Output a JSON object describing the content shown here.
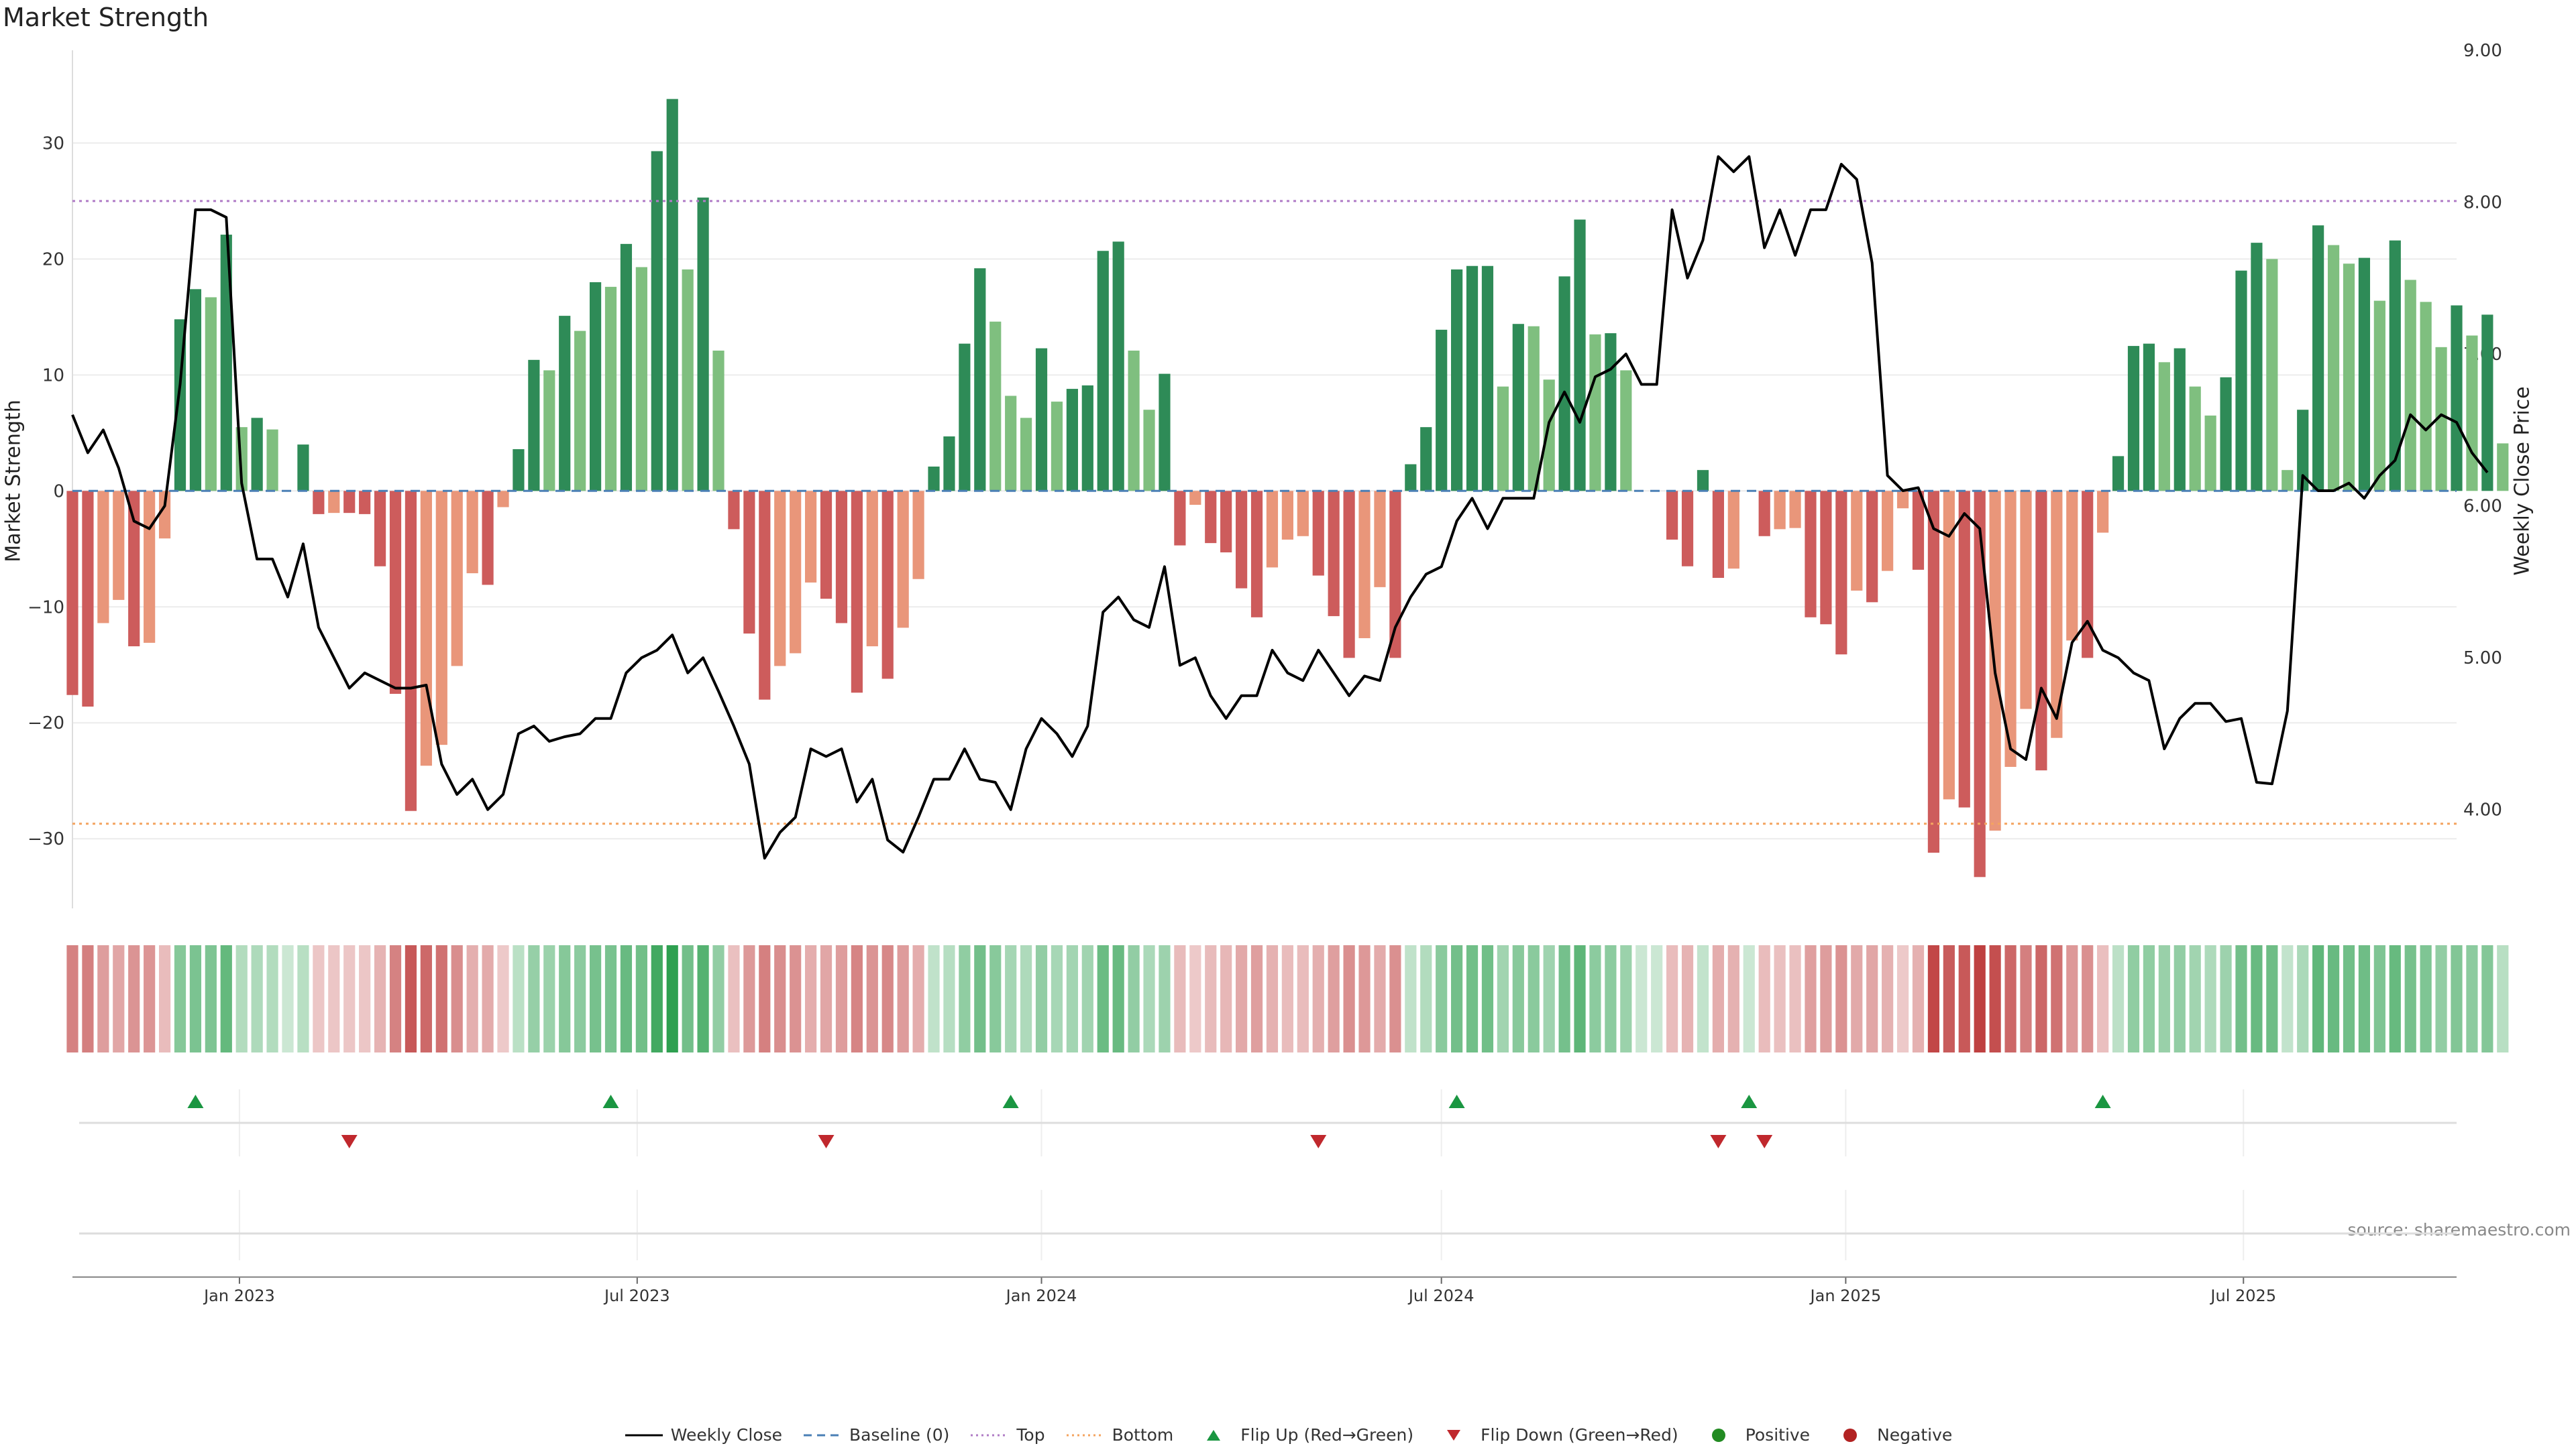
{
  "title": "Market Strength",
  "source_text": "source: sharemaestro.com",
  "colors": {
    "positive_strong": "#2e8b57",
    "positive_light": "#7fbf7f",
    "negative_strong": "#cd5c5c",
    "negative_light": "#e9967a",
    "top_line": "#b07cc6",
    "bottom_line": "#f4a460",
    "baseline": "#4a7fb5",
    "price_line": "#000000",
    "flip_up": "#1a9641",
    "flip_down": "#c0282d"
  },
  "legend": [
    {
      "label": "Weekly Close",
      "kind": "line",
      "color": "#000000"
    },
    {
      "label": "Baseline (0)",
      "kind": "dash",
      "color": "#4a7fb5"
    },
    {
      "label": "Top",
      "kind": "dot",
      "color": "#b07cc6"
    },
    {
      "label": "Bottom",
      "kind": "dot",
      "color": "#f4a460"
    },
    {
      "label": "Flip Up (Red→Green)",
      "kind": "tri-up",
      "color": "#1a9641"
    },
    {
      "label": "Flip Down (Green→Red)",
      "kind": "tri-down",
      "color": "#c0282d"
    },
    {
      "label": "Positive",
      "kind": "circle",
      "color": "#228b22"
    },
    {
      "label": "Negative",
      "kind": "circle",
      "color": "#b22222"
    }
  ],
  "chart_data": {
    "type": "bar",
    "title": "Market Strength",
    "ylabel": "Market Strength",
    "y2label": "Weekly Close Price",
    "ylim": [
      -36,
      38
    ],
    "y2lim": [
      3.35,
      9.0
    ],
    "yticks": [
      -30,
      -20,
      -10,
      0,
      10,
      20,
      30
    ],
    "y2ticks": [
      "4.00",
      "5.00",
      "6.00",
      "7.00",
      "8.00",
      "9.00"
    ],
    "xticks": [
      "Jan 2023",
      "Jul 2023",
      "Jan 2024",
      "Jul 2024",
      "Jan 2025",
      "Jul 2025"
    ],
    "x_range": [
      "2022-10-17",
      "2025-10-06"
    ],
    "top_level": 25,
    "bottom_level": -28.7,
    "grid": true,
    "legend_position": "bottom",
    "series": [
      {
        "name": "Market Strength",
        "x_start": "2022-10-17",
        "step_days": 7,
        "values": [
          -17.6,
          -18.6,
          -11.4,
          -9.4,
          -13.4,
          -13.1,
          -4.1,
          14.8,
          17.4,
          16.7,
          22.1,
          5.5,
          6.3,
          5.3,
          0,
          4,
          -2,
          -1.9,
          -1.9,
          -2,
          -6.5,
          -17.5,
          -27.6,
          -23.7,
          -21.9,
          -15.1,
          -7.1,
          -8.1,
          -1.4,
          3.6,
          11.3,
          10.4,
          15.1,
          13.8,
          18,
          17.6,
          21.3,
          19.3,
          29.3,
          33.8,
          19.1,
          25.3,
          12.1,
          -3.3,
          -12.3,
          -18,
          -15.1,
          -14,
          -7.9,
          -9.3,
          -11.4,
          -17.4,
          -13.4,
          -16.2,
          -11.8,
          -7.6,
          2.1,
          4.7,
          12.7,
          19.2,
          14.6,
          8.2,
          6.3,
          12.3,
          7.7,
          8.8,
          9.1,
          20.7,
          21.5,
          12.1,
          7,
          10.1,
          -4.7,
          -1.2,
          -4.5,
          -5.3,
          -8.4,
          -10.9,
          -6.6,
          -4.2,
          -3.9,
          -7.3,
          -10.8,
          -14.4,
          -12.7,
          -8.3,
          -14.4,
          2.3,
          5.5,
          13.9,
          19.1,
          19.4,
          19.4,
          9,
          14.4,
          14.2,
          9.6,
          18.5,
          23.4,
          13.5,
          13.6,
          10.4,
          0,
          0,
          -4.2,
          -6.5,
          1.8,
          -7.5,
          -6.7,
          0,
          -3.9,
          -3.3,
          -3.2,
          -10.9,
          -11.5,
          -14.1,
          -8.6,
          -9.6,
          -6.9,
          -1.5,
          -6.8,
          -31.2,
          -26.6,
          -27.3,
          -33.3,
          -29.3,
          -23.8,
          -18.8,
          -24.1,
          -21.3,
          -12.9,
          -14.4,
          -3.6,
          3,
          12.5,
          12.7,
          11.1,
          12.3,
          9,
          6.5,
          9.8,
          19,
          21.4,
          20,
          1.8,
          7,
          22.9,
          21.2,
          19.6,
          20.1,
          16.4,
          21.6,
          18.2,
          16.3,
          12.4,
          16,
          13.4,
          15.2,
          4.1
        ],
        "color_encoding": "green/red by sign, darker shade when magnitude rises"
      },
      {
        "name": "Weekly Close",
        "x_start": "2022-10-17",
        "step_days": 7,
        "values": [
          6.6,
          6.35,
          6.5,
          6.25,
          5.9,
          5.85,
          6.0,
          6.8,
          7.95,
          7.95,
          7.9,
          6.15,
          5.65,
          5.65,
          5.4,
          5.75,
          5.2,
          5.0,
          4.8,
          4.9,
          4.85,
          4.8,
          4.8,
          4.82,
          4.3,
          4.1,
          4.2,
          4.0,
          4.1,
          4.5,
          4.55,
          4.45,
          4.48,
          4.5,
          4.6,
          4.6,
          4.9,
          5.0,
          5.05,
          5.15,
          4.9,
          5.0,
          4.78,
          4.55,
          4.3,
          3.68,
          3.85,
          3.95,
          4.4,
          4.35,
          4.4,
          4.05,
          4.2,
          3.8,
          3.72,
          3.95,
          4.2,
          4.2,
          4.4,
          4.2,
          4.18,
          4.0,
          4.4,
          4.6,
          4.5,
          4.35,
          4.55,
          5.3,
          5.4,
          5.25,
          5.2,
          5.6,
          4.95,
          5.0,
          4.75,
          4.6,
          4.75,
          4.75,
          5.05,
          4.9,
          4.85,
          5.05,
          4.9,
          4.75,
          4.88,
          4.85,
          5.2,
          5.4,
          5.55,
          5.6,
          5.9,
          6.05,
          5.85,
          6.05,
          6.05,
          6.05,
          6.55,
          6.75,
          6.55,
          6.85,
          6.9,
          7.0,
          6.8,
          6.8,
          7.95,
          7.5,
          7.75,
          8.3,
          8.2,
          8.3,
          7.7,
          7.95,
          7.65,
          7.95,
          7.95,
          8.25,
          8.15,
          7.6,
          6.2,
          6.1,
          6.12,
          5.85,
          5.8,
          5.95,
          5.85,
          4.9,
          4.4,
          4.33,
          4.8,
          4.6,
          5.1,
          5.24,
          5.05,
          5.0,
          4.9,
          4.85,
          4.4,
          4.6,
          4.7,
          4.7,
          4.58,
          4.6,
          4.18,
          4.17,
          4.65,
          6.2,
          6.1,
          6.1,
          6.15,
          6.05,
          6.2,
          6.3,
          6.6,
          6.5,
          6.6,
          6.55,
          6.35,
          6.22
        ]
      },
      {
        "name": "Flip Up (Red→Green)",
        "dates": [
          "2022-12-12",
          "2023-06-19",
          "2023-12-18",
          "2024-07-08",
          "2024-11-18",
          "2025-04-28"
        ]
      },
      {
        "name": "Flip Down (Green→Red)",
        "dates": [
          "2023-02-20",
          "2023-09-25",
          "2024-05-06",
          "2024-11-04",
          "2024-11-25"
        ]
      }
    ]
  }
}
